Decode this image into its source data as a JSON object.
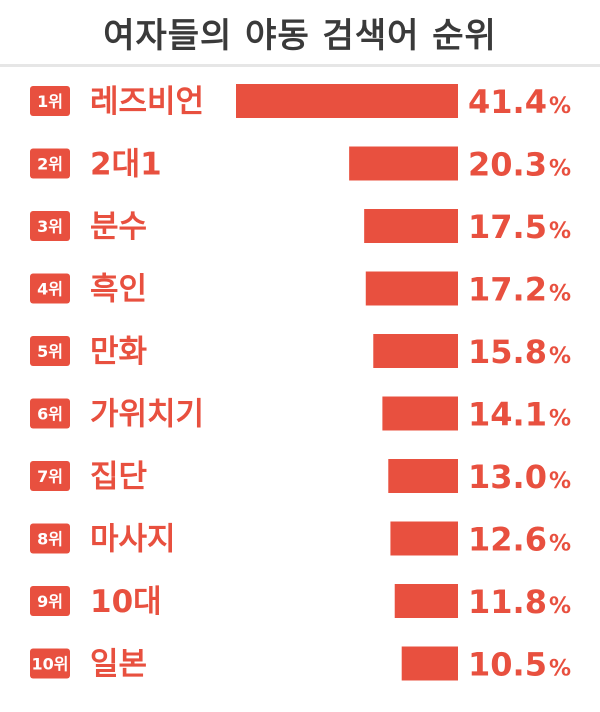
{
  "chart_data": {
    "type": "bar",
    "orientation": "horizontal",
    "title": "여자들의 야동 검색어 순위",
    "ranks": [
      "1위",
      "2위",
      "3위",
      "4위",
      "5위",
      "6위",
      "7위",
      "8위",
      "9위",
      "10위"
    ],
    "categories": [
      "레즈비언",
      "2대1",
      "분수",
      "흑인",
      "만화",
      "가위치기",
      "집단",
      "마사지",
      "10대",
      "일본"
    ],
    "values": [
      41.4,
      20.3,
      17.5,
      17.2,
      15.8,
      14.1,
      13.0,
      12.6,
      11.8,
      10.5
    ],
    "value_labels": [
      "41.4",
      "20.3",
      "17.5",
      "17.2",
      "15.8",
      "14.1",
      "13.0",
      "12.6",
      "11.8",
      "10.5"
    ],
    "unit": "%",
    "colors": {
      "bar": "#e8503f",
      "text": "#e8503f",
      "title": "#3a3a3a",
      "rank_badge": "#e8503f"
    },
    "grid": false,
    "legend": "none"
  }
}
